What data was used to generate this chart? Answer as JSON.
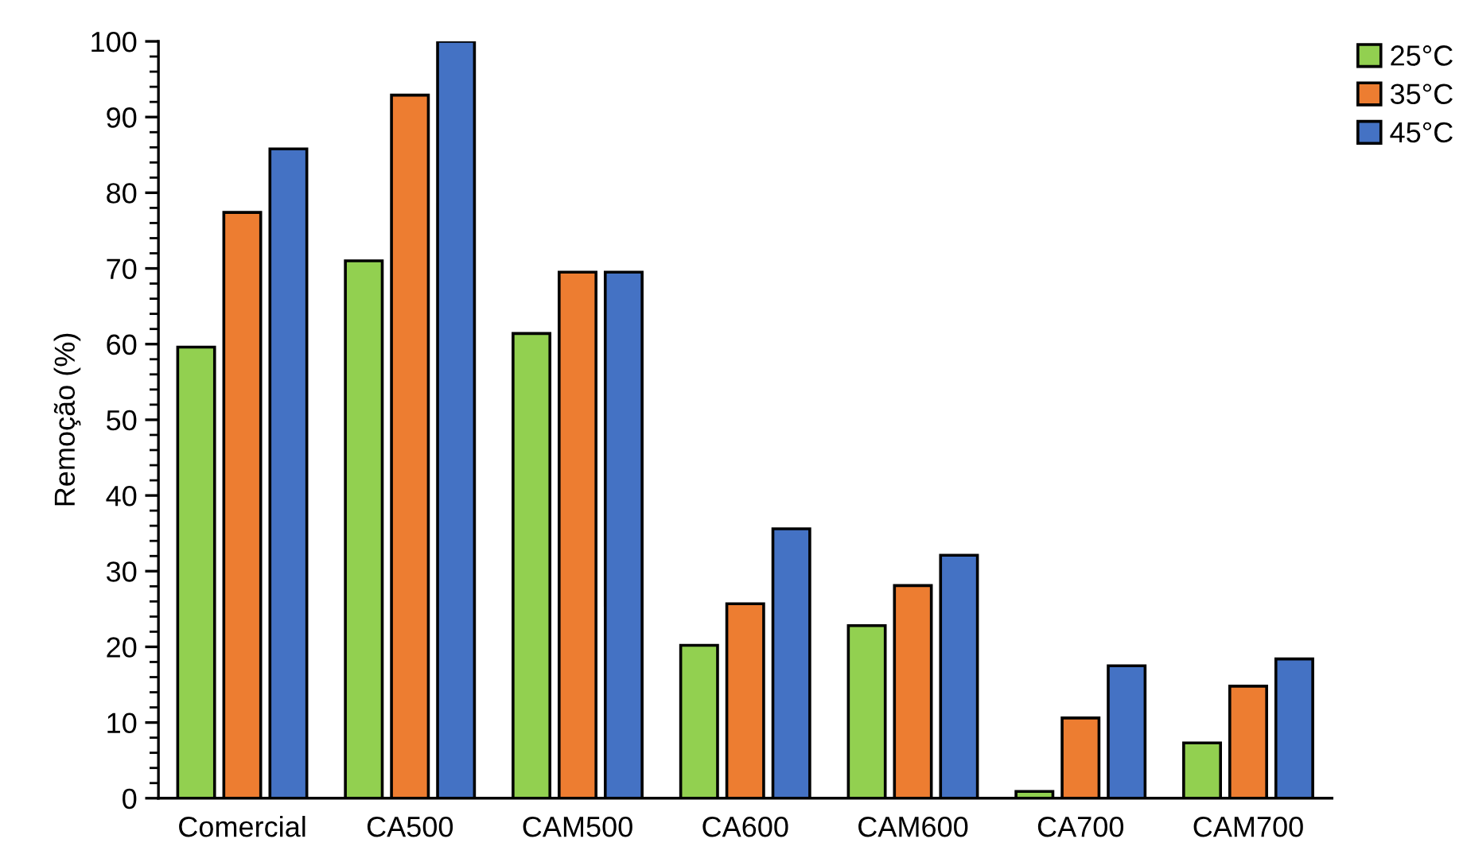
{
  "chart_data": {
    "type": "bar",
    "ylabel": "Remoção (%)",
    "categories": [
      "Comercial",
      "CA500",
      "CAM500",
      "CA600",
      "CAM600",
      "CA700",
      "CAM700"
    ],
    "series": [
      {
        "name": "25°C",
        "color": "#92d050",
        "values": [
          59.6,
          71.0,
          61.4,
          20.2,
          22.8,
          0.9,
          7.3
        ]
      },
      {
        "name": "35°C",
        "color": "#ed7d31",
        "values": [
          77.4,
          92.9,
          69.5,
          25.7,
          28.1,
          10.6,
          14.8
        ]
      },
      {
        "name": "45°C",
        "color": "#4472c4",
        "values": [
          85.8,
          100,
          69.5,
          35.6,
          32.1,
          17.5,
          18.4
        ]
      }
    ],
    "ylim": [
      0,
      100
    ],
    "yticks": [
      0,
      10,
      20,
      30,
      40,
      50,
      60,
      70,
      80,
      90,
      100
    ],
    "grid": false,
    "legend": "top right"
  }
}
